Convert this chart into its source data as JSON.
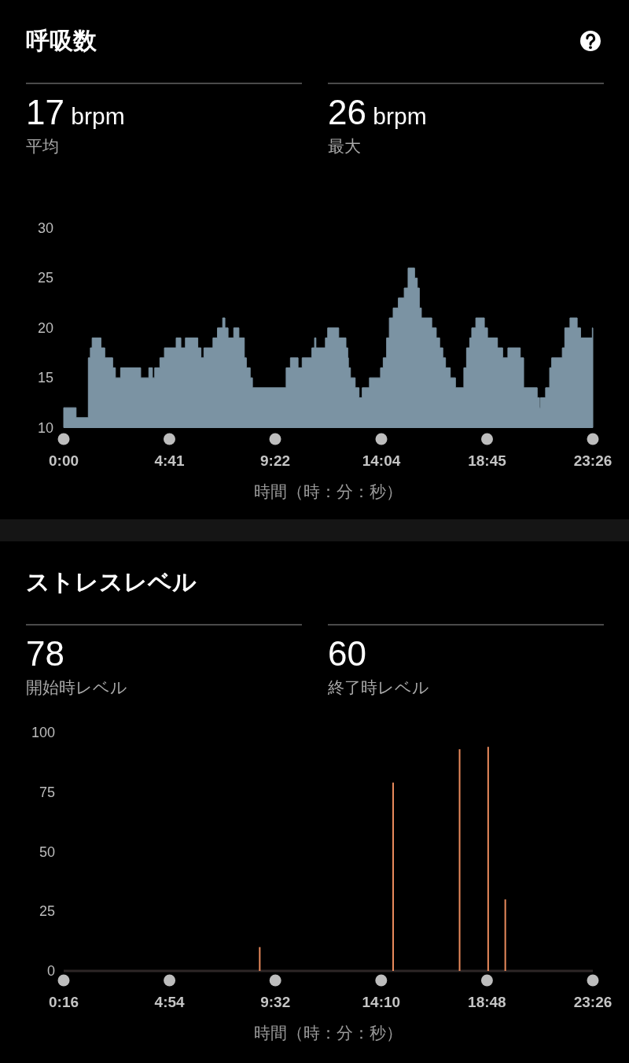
{
  "chart_data": [
    {
      "type": "area",
      "title": "呼吸数",
      "annotations": [
        "17 brpm",
        "平均",
        "26 brpm",
        "最大"
      ],
      "xlabel": "時間（時：分：秒）",
      "x": [
        0,
        0.55,
        0.55,
        1.09,
        1.09,
        1.18,
        1.18,
        1.26,
        1.26,
        1.65,
        1.65,
        1.82,
        1.82,
        2.17,
        2.17,
        2.29,
        2.29,
        2.52,
        2.52,
        3.41,
        3.41,
        3.77,
        3.77,
        3.93,
        3.93,
        4.03,
        4.03,
        4.26,
        4.26,
        4.46,
        4.46,
        4.98,
        4.98,
        5.19,
        5.19,
        5.39,
        5.39,
        5.94,
        5.94,
        6.08,
        6.08,
        6.21,
        6.21,
        6.61,
        6.61,
        6.81,
        6.81,
        7.04,
        7.04,
        7.14,
        7.14,
        7.28,
        7.28,
        7.53,
        7.53,
        7.76,
        7.76,
        8.0,
        8.0,
        8.09,
        8.09,
        8.26,
        8.26,
        8.36,
        8.36,
        9.85,
        9.85,
        10.04,
        10.04,
        10.38,
        10.38,
        10.56,
        10.56,
        10.99,
        10.99,
        11.11,
        11.11,
        11.17,
        11.17,
        11.59,
        11.59,
        11.69,
        11.69,
        12.18,
        12.18,
        12.5,
        12.5,
        12.58,
        12.58,
        12.61,
        12.61,
        12.7,
        12.7,
        12.91,
        12.91,
        13.08,
        13.08,
        13.22,
        13.22,
        13.54,
        13.54,
        14.03,
        14.03,
        14.15,
        14.15,
        14.3,
        14.3,
        14.42,
        14.42,
        14.59,
        14.59,
        14.82,
        14.82,
        15.08,
        15.08,
        15.25,
        15.25,
        15.54,
        15.54,
        15.66,
        15.66,
        15.75,
        15.75,
        15.84,
        15.84,
        16.3,
        16.3,
        16.5,
        16.5,
        16.65,
        16.65,
        16.79,
        16.79,
        16.91,
        16.91,
        17.12,
        17.12,
        17.35,
        17.35,
        17.72,
        17.72,
        17.84,
        17.84,
        17.98,
        17.98,
        18.07,
        18.07,
        18.25,
        18.25,
        18.63,
        18.63,
        18.77,
        18.77,
        19.21,
        19.21,
        19.44,
        19.44,
        19.67,
        19.67,
        20.22,
        20.22,
        20.37,
        20.37,
        20.97,
        20.97,
        21.07,
        21.07,
        21.11,
        21.11,
        21.34,
        21.34,
        21.52,
        21.52,
        21.61,
        21.61,
        22.08,
        22.08,
        22.19,
        22.19,
        22.42,
        22.42,
        22.74,
        22.74,
        22.89,
        22.89,
        23.41,
        23.41,
        23.433
      ],
      "values": [
        12,
        12,
        11,
        11,
        17,
        17,
        18,
        18,
        19,
        19,
        18,
        18,
        17,
        17,
        16,
        16,
        15,
        15,
        16,
        16,
        15,
        15,
        16,
        16,
        15,
        15,
        16,
        16,
        17,
        17,
        18,
        18,
        19,
        19,
        18,
        18,
        19,
        19,
        18,
        18,
        17,
        17,
        18,
        18,
        19,
        19,
        20,
        20,
        21,
        21,
        20,
        20,
        19,
        19,
        20,
        20,
        19,
        19,
        17,
        17,
        16,
        16,
        15,
        15,
        14,
        14,
        16,
        16,
        17,
        17,
        16,
        16,
        17,
        17,
        18,
        18,
        19,
        19,
        18,
        18,
        19,
        19,
        20,
        20,
        19,
        19,
        18,
        18,
        17,
        17,
        16,
        16,
        15,
        15,
        14,
        14,
        13,
        13,
        14,
        14,
        15,
        15,
        16,
        16,
        17,
        17,
        19,
        19,
        21,
        21,
        22,
        22,
        23,
        23,
        24,
        24,
        26,
        26,
        25,
        25,
        24,
        24,
        22,
        22,
        21,
        21,
        20,
        20,
        19,
        19,
        18,
        18,
        17,
        17,
        16,
        16,
        15,
        15,
        14,
        14,
        16,
        16,
        18,
        18,
        19,
        19,
        20,
        20,
        21,
        21,
        20,
        20,
        19,
        19,
        18,
        18,
        17,
        17,
        18,
        18,
        17,
        17,
        14,
        14,
        13,
        13,
        12,
        12,
        13,
        13,
        14,
        14,
        16,
        16,
        17,
        17,
        18,
        18,
        20,
        20,
        21,
        21,
        20,
        20,
        19,
        19,
        20,
        20
      ],
      "color": "#7b93a3",
      "xlim": [
        0,
        23.433
      ],
      "xticks": [
        {
          "value": 0,
          "label": "0:00"
        },
        {
          "value": 4.683,
          "label": "4:41"
        },
        {
          "value": 9.367,
          "label": "9:22"
        },
        {
          "value": 14.067,
          "label": "14:04"
        },
        {
          "value": 18.75,
          "label": "18:45"
        },
        {
          "value": 23.433,
          "label": "23:26"
        }
      ],
      "ylim": [
        10,
        30
      ],
      "yticks": [
        10,
        15,
        20,
        25,
        30
      ]
    },
    {
      "type": "bar",
      "title": "ストレスレベル",
      "annotations": [
        "78",
        "開始時レベル",
        "60",
        "終了時レベル"
      ],
      "xlabel": "時間（時：分：秒）",
      "x": [
        8.85,
        14.69,
        17.6,
        18.85,
        19.6
      ],
      "values": [
        10,
        79,
        93,
        94,
        30
      ],
      "color": "#e98a5c",
      "xlim": [
        0.267,
        23.433
      ],
      "xticks": [
        {
          "value": 0.267,
          "label": "0:16"
        },
        {
          "value": 4.9,
          "label": "4:54"
        },
        {
          "value": 9.533,
          "label": "9:32"
        },
        {
          "value": 14.167,
          "label": "14:10"
        },
        {
          "value": 18.8,
          "label": "18:48"
        },
        {
          "value": 23.433,
          "label": "23:26"
        }
      ],
      "ylim": [
        0,
        100
      ],
      "yticks": [
        0,
        25,
        50,
        75,
        100
      ]
    }
  ]
}
